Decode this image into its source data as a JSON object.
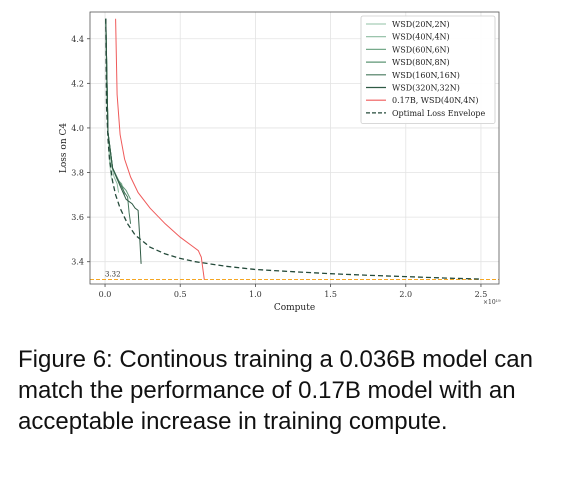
{
  "chart_data": {
    "type": "line",
    "title": "",
    "xlabel": "Compute",
    "ylabel": "Loss on C4",
    "x_scale_label": "×10¹⁹",
    "xlim": [
      -0.1,
      2.62
    ],
    "ylim": [
      3.3,
      4.52
    ],
    "xticks": [
      0.0,
      0.5,
      1.0,
      1.5,
      2.0,
      2.5
    ],
    "xtick_labels": [
      "0.0",
      "0.5",
      "1.0",
      "1.5",
      "2.0",
      "2.5"
    ],
    "yticks": [
      3.4,
      3.6,
      3.8,
      4.0,
      4.2,
      4.4
    ],
    "ytick_labels": [
      "3.4",
      "3.6",
      "3.8",
      "4.0",
      "4.2",
      "4.4"
    ],
    "grid": true,
    "legend_position": "upper right",
    "reference_line": {
      "y": 3.32,
      "label": "3.32",
      "color": "#f5a623"
    },
    "series": [
      {
        "name": "WSD(20N,2N)",
        "color": "#a7cdb6",
        "style": "solid",
        "x": [
          0.005,
          0.01,
          0.02,
          0.03,
          0.04,
          0.05
        ],
        "y": [
          4.49,
          4.2,
          3.98,
          3.85,
          3.78,
          3.76
        ]
      },
      {
        "name": "WSD(40N,4N)",
        "color": "#8dbba0",
        "style": "solid",
        "x": [
          0.005,
          0.02,
          0.04,
          0.06,
          0.08,
          0.09
        ],
        "y": [
          4.49,
          3.98,
          3.84,
          3.78,
          3.75,
          3.71
        ]
      },
      {
        "name": "WSD(60N,6N)",
        "color": "#76a98a",
        "style": "solid",
        "x": [
          0.005,
          0.02,
          0.05,
          0.08,
          0.11,
          0.13
        ],
        "y": [
          4.49,
          3.98,
          3.82,
          3.77,
          3.75,
          3.7
        ]
      },
      {
        "name": "WSD(80N,8N)",
        "color": "#5e9675",
        "style": "solid",
        "x": [
          0.005,
          0.02,
          0.05,
          0.1,
          0.14,
          0.17
        ],
        "y": [
          4.49,
          3.98,
          3.82,
          3.75,
          3.72,
          3.68
        ]
      },
      {
        "name": "WSD(160N,16N)",
        "color": "#46785d",
        "style": "solid",
        "x": [
          0.005,
          0.02,
          0.05,
          0.1,
          0.13,
          0.15,
          0.16,
          0.17
        ],
        "y": [
          4.49,
          3.98,
          3.82,
          3.75,
          3.71,
          3.69,
          3.62,
          3.57
        ]
      },
      {
        "name": "WSD(320N,32N)",
        "color": "#2f5a44",
        "style": "solid",
        "x": [
          0.005,
          0.02,
          0.05,
          0.1,
          0.14,
          0.18,
          0.2,
          0.22,
          0.23,
          0.24
        ],
        "y": [
          4.49,
          3.98,
          3.82,
          3.74,
          3.68,
          3.66,
          3.64,
          3.63,
          3.52,
          3.39
        ]
      },
      {
        "name": "0.17B, WSD(40N,4N)",
        "color": "#ef5a5a",
        "style": "solid",
        "x": [
          0.07,
          0.08,
          0.1,
          0.13,
          0.17,
          0.22,
          0.3,
          0.4,
          0.5,
          0.58,
          0.62,
          0.64,
          0.65,
          0.66
        ],
        "y": [
          4.49,
          4.15,
          3.97,
          3.86,
          3.78,
          3.71,
          3.64,
          3.57,
          3.51,
          3.47,
          3.45,
          3.42,
          3.37,
          3.32
        ]
      },
      {
        "name": "Optimal Loss Envelope",
        "color": "#244a3a",
        "style": "dashed",
        "x": [
          0.005,
          0.01,
          0.02,
          0.03,
          0.05,
          0.07,
          0.1,
          0.15,
          0.2,
          0.3,
          0.4,
          0.5,
          0.6,
          0.8,
          1.0,
          1.25,
          1.5,
          1.75,
          2.0,
          2.25,
          2.5
        ],
        "y": [
          4.49,
          4.1,
          3.95,
          3.86,
          3.76,
          3.7,
          3.64,
          3.57,
          3.52,
          3.465,
          3.435,
          3.415,
          3.4,
          3.38,
          3.365,
          3.355,
          3.346,
          3.339,
          3.333,
          3.327,
          3.322
        ]
      }
    ]
  },
  "caption": "Figure 6: Continous training a 0.036B model can match the performance of 0.17B model with an acceptable increase in training compute."
}
